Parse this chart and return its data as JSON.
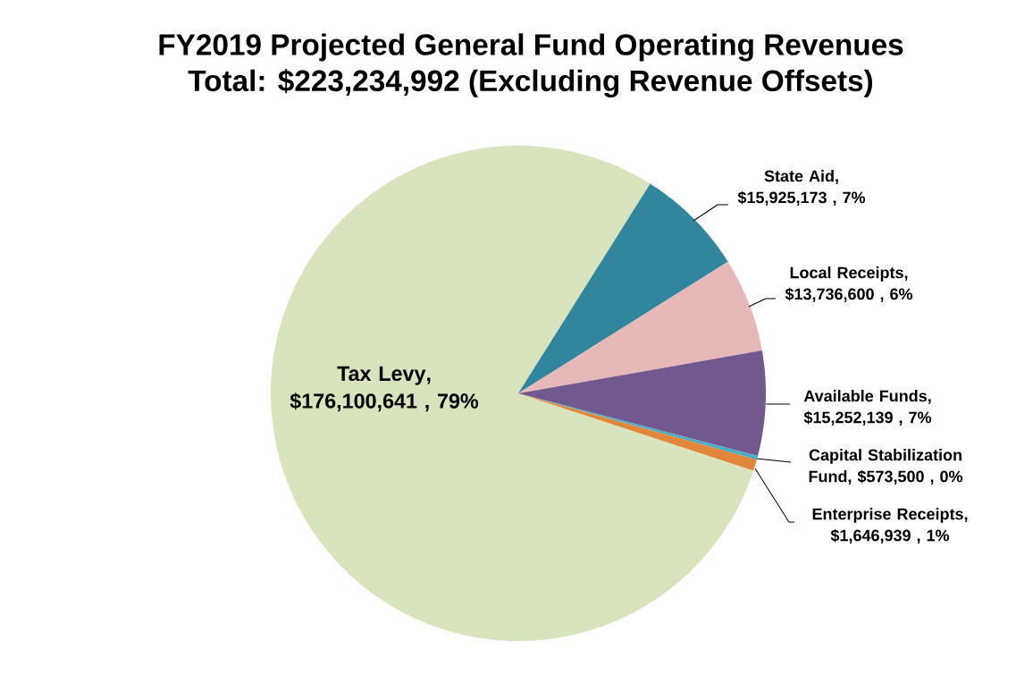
{
  "chart_data": {
    "type": "pie",
    "title": "FY2019 Projected General Fund Operating Revenues",
    "subtitle": "Total: $223,234,992 (Excluding Revenue Offsets)",
    "categories": [
      "Tax Levy",
      "State Aid",
      "Local Receipts",
      "Available Funds",
      "Capital Stabilization Fund",
      "Enterprise Receipts"
    ],
    "values": [
      176100641,
      15925173,
      13736600,
      15252139,
      573500,
      1646939
    ],
    "value_labels": [
      ", $176,100,641 , 79%",
      ", $15,925,173 , 7%",
      ", $13,736,600 , 6%",
      ", $15,252,139 , 7%",
      ", $573,500 , 0%",
      ", $1,646,939 , 1%"
    ],
    "colors": [
      "#d7e4bd",
      "#31859c",
      "#e6b9b8",
      "#71588f",
      "#4bacc6",
      "#e0873c"
    ]
  }
}
